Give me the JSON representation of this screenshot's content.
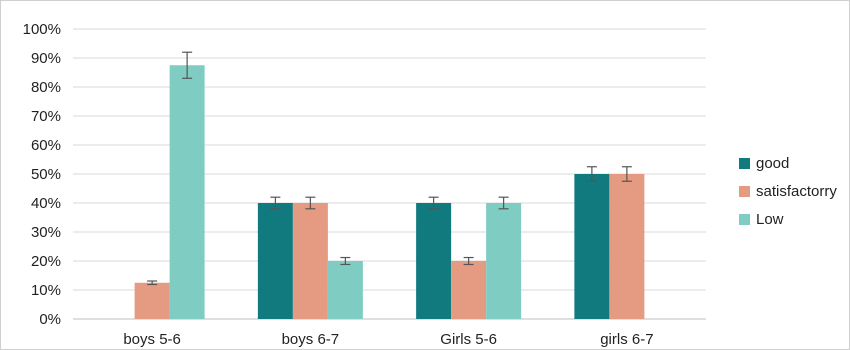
{
  "chart_data": {
    "type": "bar",
    "title": "",
    "xlabel": "",
    "ylabel": "",
    "categories": [
      "boys 5-6",
      "boys 6-7",
      "Girls 5-6",
      "girls 6-7"
    ],
    "ylim": [
      0,
      100
    ],
    "y_ticks": [
      "0%",
      "10%",
      "20%",
      "30%",
      "40%",
      "50%",
      "60%",
      "70%",
      "80%",
      "90%",
      "100%"
    ],
    "grid": true,
    "legend_position": "right",
    "series": [
      {
        "name": "good",
        "color": "#107a7f",
        "values": [
          0,
          40,
          40,
          50
        ],
        "errors": [
          0,
          2,
          2,
          2.5
        ]
      },
      {
        "name": "satisfactorry",
        "color": "#e59a82",
        "values": [
          12.5,
          40,
          20,
          50
        ],
        "errors": [
          0.6,
          2,
          1.2,
          2.5
        ]
      },
      {
        "name": "Low",
        "color": "#7fcdc2",
        "values": [
          87.5,
          20,
          40,
          0
        ],
        "errors": [
          4.5,
          1.2,
          2,
          0
        ]
      }
    ]
  }
}
